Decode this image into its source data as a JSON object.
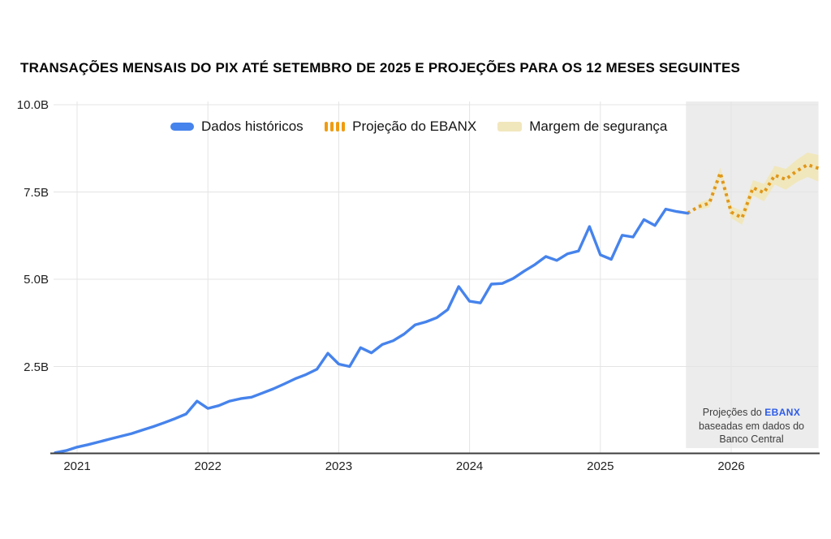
{
  "annotation": {
    "prefix": "Projeções do",
    "brand": "EBANX",
    "line2": "baseadas em dados do",
    "line3": "Banco Central"
  },
  "chart_data": {
    "type": "line",
    "title": "TRANSAÇÕES MENSAIS DO PIX ATÉ SETEMBRO DE 2025 E PROJEÇÕES PARA OS 12 MESES SEGUINTES",
    "unit": "billions of PIX transactions per month",
    "ylim": [
      0,
      10
    ],
    "grid": true,
    "legend_position": "top",
    "y_ticks": [
      {
        "value": 2.5,
        "label": "2.5B"
      },
      {
        "value": 5.0,
        "label": "5.0B"
      },
      {
        "value": 7.5,
        "label": "7.5B"
      },
      {
        "value": 10.0,
        "label": "10.0B"
      }
    ],
    "x_ticks": [
      {
        "year": 2021,
        "label": "2021"
      },
      {
        "year": 2022,
        "label": "2022"
      },
      {
        "year": 2023,
        "label": "2023"
      },
      {
        "year": 2024,
        "label": "2024"
      },
      {
        "year": 2025,
        "label": "2025"
      },
      {
        "year": 2026,
        "label": "2026"
      }
    ],
    "series": [
      {
        "name": "Dados históricos",
        "style": "solid",
        "color": "#4683ec",
        "start_month": "2020-11",
        "end_month": "2025-09",
        "values": [
          0.03,
          0.09,
          0.19,
          0.26,
          0.34,
          0.42,
          0.5,
          0.58,
          0.68,
          0.78,
          0.89,
          1.01,
          1.14,
          1.51,
          1.3,
          1.38,
          1.51,
          1.58,
          1.62,
          1.74,
          1.86,
          2.0,
          2.15,
          2.27,
          2.42,
          2.88,
          2.57,
          2.5,
          3.04,
          2.89,
          3.13,
          3.24,
          3.43,
          3.69,
          3.78,
          3.9,
          4.13,
          4.79,
          4.37,
          4.32,
          4.86,
          4.88,
          5.02,
          5.23,
          5.42,
          5.65,
          5.54,
          5.73,
          5.81,
          6.51,
          5.7,
          5.57,
          6.26,
          6.21,
          6.71,
          6.54,
          7.01,
          6.94,
          6.89
        ]
      },
      {
        "name": "Projeção do EBANX",
        "style": "dotted",
        "color": "#e0971a",
        "start_month": "2025-10",
        "end_month": "2026-09",
        "values": [
          7.08,
          7.18,
          8.05,
          6.92,
          6.76,
          7.62,
          7.48,
          7.98,
          7.86,
          8.1,
          8.28,
          8.18
        ]
      },
      {
        "name": "Margem de segurança",
        "style": "band",
        "color": "#f1e7bd",
        "start_month": "2025-10",
        "end_month": "2026-09",
        "margin": [
          0.1,
          0.12,
          0.15,
          0.17,
          0.2,
          0.22,
          0.25,
          0.27,
          0.3,
          0.32,
          0.35,
          0.38
        ]
      }
    ],
    "projection_region": {
      "start_month": "2025-09",
      "background": "#ececec"
    }
  }
}
